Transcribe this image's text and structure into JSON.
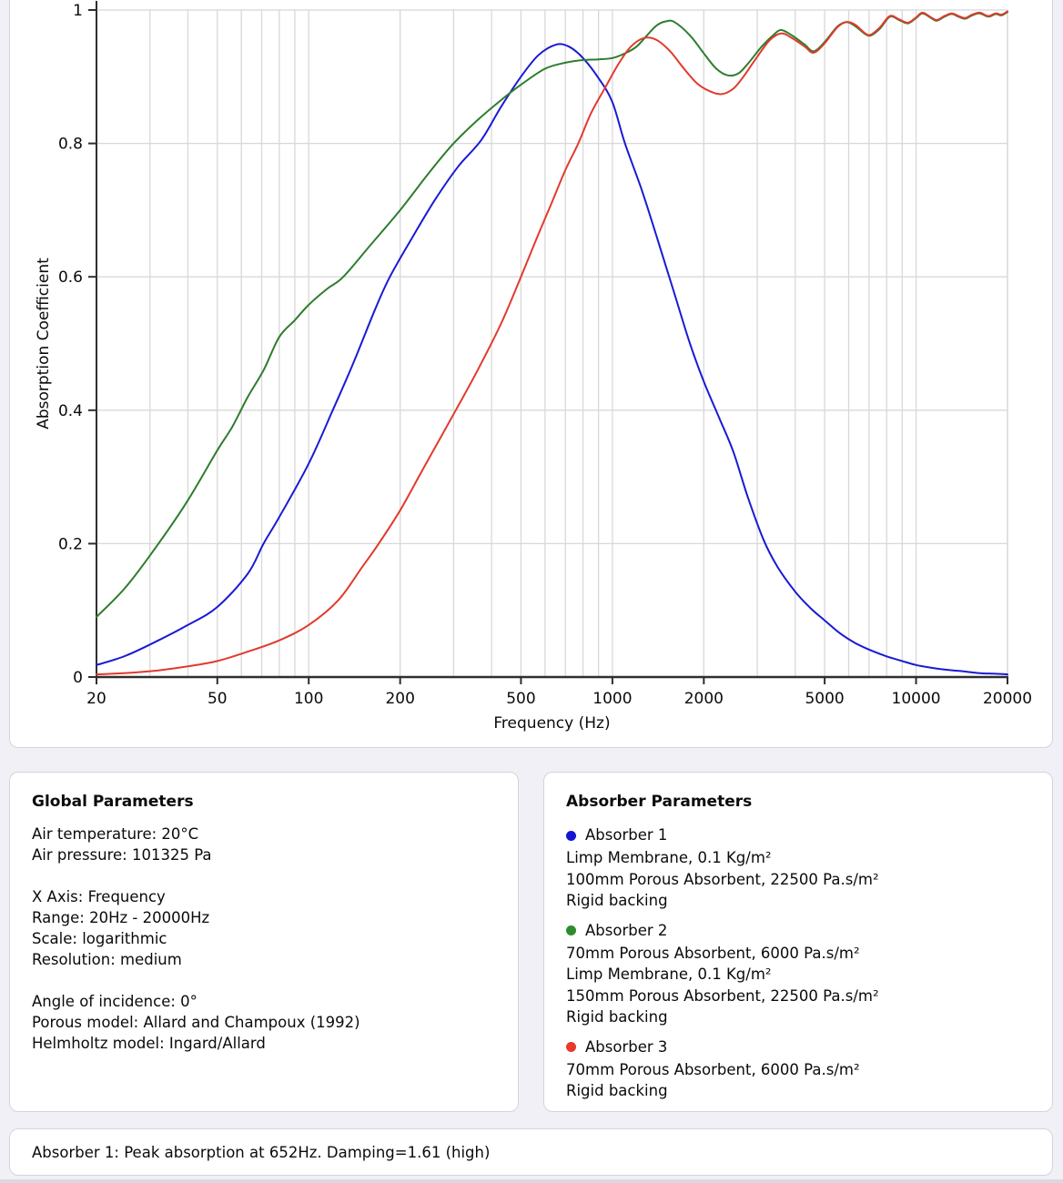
{
  "page": {
    "background": "#f2f0f7"
  },
  "chart": {
    "y_axis_label": "Absorption Coefficient",
    "x_axis_label": "Frequency (Hz)",
    "x_ticks": [
      20,
      50,
      100,
      200,
      500,
      1000,
      2000,
      5000,
      10000,
      20000
    ],
    "x_tick_labels": [
      "20",
      "50",
      "100",
      "200",
      "500",
      "1000",
      "2000",
      "5000",
      "10000",
      "20000"
    ],
    "y_ticks": [
      0,
      0.2,
      0.4,
      0.6,
      0.8,
      1
    ],
    "y_tick_labels": [
      "0",
      "0.2",
      "0.4",
      "0.6",
      "0.8",
      "1"
    ]
  },
  "chart_data": {
    "type": "line",
    "title": "",
    "xlabel": "Frequency (Hz)",
    "ylabel": "Absorption Coefficient",
    "x_scale": "log",
    "xlim": [
      20,
      20000
    ],
    "ylim": [
      0,
      1
    ],
    "grid": true,
    "legend_position": "none",
    "series": [
      {
        "name": "Absorber 1",
        "color": "#1a1ad5",
        "x": [
          20,
          25,
          32,
          40,
          50,
          63,
          71,
          80,
          100,
          120,
          140,
          165,
          185,
          220,
          260,
          310,
          370,
          430,
          500,
          570,
          652,
          720,
          800,
          900,
          1000,
          1100,
          1250,
          1400,
          1600,
          1800,
          2000,
          2250,
          2500,
          2800,
          3150,
          3500,
          4000,
          4500,
          5000,
          5600,
          6300,
          7100,
          8000,
          9000,
          10000,
          11200,
          12500,
          14000,
          16000,
          18000,
          20000
        ],
        "y": [
          0.018,
          0.032,
          0.055,
          0.078,
          0.105,
          0.155,
          0.2,
          0.24,
          0.32,
          0.4,
          0.47,
          0.55,
          0.6,
          0.66,
          0.715,
          0.765,
          0.805,
          0.855,
          0.9,
          0.932,
          0.948,
          0.945,
          0.928,
          0.898,
          0.862,
          0.8,
          0.73,
          0.66,
          0.575,
          0.5,
          0.443,
          0.388,
          0.338,
          0.268,
          0.205,
          0.165,
          0.128,
          0.103,
          0.085,
          0.066,
          0.051,
          0.04,
          0.031,
          0.024,
          0.018,
          0.014,
          0.011,
          0.009,
          0.006,
          0.005,
          0.004
        ]
      },
      {
        "name": "Absorber 2",
        "color": "#2e7d2e",
        "x": [
          20,
          25,
          32,
          40,
          50,
          56,
          63,
          71,
          80,
          90,
          100,
          115,
          130,
          160,
          200,
          250,
          300,
          360,
          430,
          500,
          600,
          700,
          800,
          900,
          1000,
          1100,
          1200,
          1300,
          1400,
          1500,
          1600,
          1800,
          2000,
          2200,
          2400,
          2600,
          2800,
          3100,
          3400,
          3600,
          3900,
          4300,
          4600,
          5000,
          5500,
          5900,
          6300,
          6800,
          7100,
          7600,
          8200,
          8800,
          9400,
          10000,
          10500,
          11200,
          11700,
          12400,
          13100,
          13800,
          14500,
          15300,
          16200,
          17300,
          18300,
          19100,
          20000
        ],
        "y": [
          0.09,
          0.135,
          0.2,
          0.265,
          0.34,
          0.375,
          0.42,
          0.46,
          0.51,
          0.535,
          0.558,
          0.582,
          0.6,
          0.648,
          0.7,
          0.757,
          0.8,
          0.835,
          0.865,
          0.888,
          0.912,
          0.921,
          0.925,
          0.926,
          0.928,
          0.935,
          0.945,
          0.962,
          0.977,
          0.983,
          0.982,
          0.962,
          0.935,
          0.912,
          0.902,
          0.905,
          0.92,
          0.945,
          0.963,
          0.97,
          0.962,
          0.948,
          0.938,
          0.952,
          0.975,
          0.982,
          0.976,
          0.964,
          0.962,
          0.972,
          0.99,
          0.985,
          0.98,
          0.988,
          0.995,
          0.988,
          0.984,
          0.99,
          0.994,
          0.99,
          0.987,
          0.992,
          0.995,
          0.99,
          0.994,
          0.992,
          0.997
        ]
      },
      {
        "name": "Absorber 3",
        "color": "#e13a2d",
        "x": [
          20,
          25,
          32,
          40,
          50,
          63,
          80,
          100,
          125,
          150,
          170,
          200,
          240,
          305,
          360,
          430,
          500,
          560,
          630,
          700,
          772,
          850,
          950,
          1050,
          1150,
          1270,
          1400,
          1550,
          1700,
          1900,
          2100,
          2290,
          2500,
          2700,
          3000,
          3300,
          3600,
          3900,
          4300,
          4600,
          5000,
          5500,
          5900,
          6300,
          6800,
          7100,
          7600,
          8200,
          8800,
          9400,
          10000,
          10500,
          11200,
          11700,
          12400,
          13100,
          13800,
          14500,
          15300,
          16200,
          17300,
          18300,
          19100,
          20000
        ],
        "y": [
          0.004,
          0.006,
          0.01,
          0.016,
          0.024,
          0.038,
          0.055,
          0.078,
          0.115,
          0.165,
          0.2,
          0.25,
          0.315,
          0.4,
          0.46,
          0.53,
          0.6,
          0.655,
          0.71,
          0.76,
          0.8,
          0.845,
          0.885,
          0.92,
          0.945,
          0.958,
          0.955,
          0.938,
          0.915,
          0.89,
          0.878,
          0.874,
          0.882,
          0.9,
          0.93,
          0.955,
          0.965,
          0.958,
          0.945,
          0.936,
          0.95,
          0.974,
          0.982,
          0.978,
          0.965,
          0.963,
          0.974,
          0.991,
          0.986,
          0.981,
          0.989,
          0.996,
          0.989,
          0.985,
          0.991,
          0.995,
          0.991,
          0.988,
          0.993,
          0.996,
          0.991,
          0.995,
          0.993,
          0.998
        ]
      }
    ]
  },
  "global_parameters": {
    "title": "Global Parameters",
    "lines": [
      "Air temperature: 20°C",
      "Air pressure: 101325 Pa",
      "",
      "X Axis: Frequency",
      "Range: 20Hz - 20000Hz",
      "Scale: logarithmic",
      "Resolution: medium",
      "",
      "Angle of incidence: 0°",
      "Porous model: Allard and Champoux (1992)",
      "Helmholtz model: Ingard/Allard"
    ]
  },
  "absorber_parameters": {
    "title": "Absorber Parameters",
    "absorbers": [
      {
        "name": "Absorber 1",
        "color": "#1414d6",
        "layers": [
          "Limp Membrane, 0.1 Kg/m²",
          "100mm Porous Absorbent, 22500 Pa.s/m²",
          "Rigid backing"
        ]
      },
      {
        "name": "Absorber 2",
        "color": "#2e8b2e",
        "layers": [
          "70mm Porous Absorbent, 6000 Pa.s/m²",
          "Limp Membrane, 0.1 Kg/m²",
          "150mm Porous Absorbent, 22500 Pa.s/m²",
          "Rigid backing"
        ]
      },
      {
        "name": "Absorber 3",
        "color": "#e8392b",
        "layers": [
          "70mm Porous Absorbent, 6000 Pa.s/m²",
          "Rigid backing"
        ]
      }
    ]
  },
  "status_bar": {
    "text": "Absorber 1: Peak absorption at 652Hz. Damping=1.61 (high)"
  }
}
